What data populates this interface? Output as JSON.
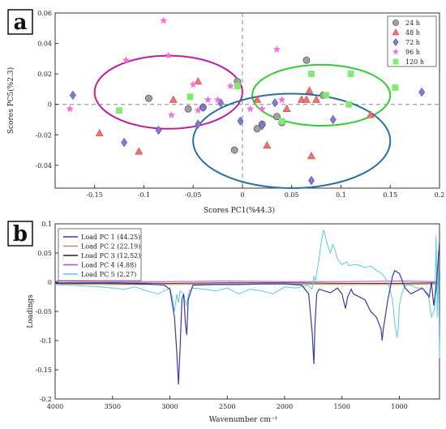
{
  "figure": {
    "panels": [
      "a",
      "b"
    ]
  },
  "chart_data": [
    {
      "type": "scatter",
      "panel": "a",
      "xlabel": "Scores PC1(%44.3)",
      "ylabel": "Scores PC5(%2.3)",
      "xlim": [
        -0.19,
        0.2
      ],
      "ylim": [
        -0.055,
        0.06
      ],
      "xticks": [
        -0.15,
        -0.1,
        -0.05,
        0,
        0.05,
        0.1,
        0.15,
        0.2
      ],
      "xtick_labels": [
        "-0.15",
        "-0.1",
        "-0.05",
        "0",
        "0.05",
        "0.1",
        "0.15",
        "0.2"
      ],
      "yticks": [
        -0.04,
        -0.02,
        0,
        0.02,
        0.04,
        0.06
      ],
      "ytick_labels": [
        "-0.04",
        "-0.02",
        "0",
        "0.02",
        "0.04",
        "0.06"
      ],
      "reference_lines": {
        "x": 0,
        "y": 0
      },
      "legend_position": "top-right",
      "series": [
        {
          "name": "24 h",
          "marker": "circle",
          "color": "#a0a0a0",
          "x": [
            -0.095,
            -0.055,
            -0.04,
            -0.005,
            -0.008,
            0.015,
            0.02,
            0.035,
            0.04,
            0.065,
            0.082
          ],
          "y": [
            0.004,
            -0.003,
            -0.002,
            0.015,
            -0.03,
            -0.016,
            -0.013,
            -0.008,
            -0.012,
            0.029,
            0.006
          ]
        },
        {
          "name": "48 h",
          "marker": "triangle",
          "color": "#f27070",
          "x": [
            -0.145,
            -0.105,
            -0.07,
            -0.045,
            0.015,
            0.025,
            0.045,
            0.06,
            0.065,
            0.068,
            0.07,
            0.075,
            0.13
          ],
          "y": [
            -0.019,
            -0.031,
            0.003,
            0.015,
            0.003,
            -0.027,
            -0.003,
            0.003,
            0.003,
            0.009,
            -0.034,
            0.003,
            -0.007
          ]
        },
        {
          "name": "72 h",
          "marker": "diamond",
          "color": "#7b7bd8",
          "x": [
            -0.172,
            -0.12,
            -0.085,
            -0.045,
            -0.04,
            -0.022,
            -0.002,
            0.02,
            0.033,
            0.07,
            0.092,
            0.182
          ],
          "y": [
            0.006,
            -0.025,
            -0.017,
            -0.013,
            -0.002,
            0.001,
            -0.011,
            -0.014,
            0.001,
            -0.05,
            -0.01,
            0.008
          ]
        },
        {
          "name": "96 h",
          "marker": "star",
          "color": "#ef6fe0",
          "x": [
            -0.175,
            -0.118,
            -0.08,
            -0.075,
            -0.072,
            -0.05,
            -0.045,
            -0.035,
            -0.025,
            -0.012,
            0.008,
            0.02,
            0.035,
            0.04
          ],
          "y": [
            -0.003,
            0.029,
            0.055,
            0.032,
            -0.007,
            0.013,
            -0.004,
            0.003,
            0.003,
            0.012,
            -0.003,
            -0.003,
            0.036,
            0.003
          ]
        },
        {
          "name": "120 h",
          "marker": "square",
          "color": "#7ded6f",
          "x": [
            -0.125,
            -0.053,
            -0.005,
            0.04,
            0.07,
            0.085,
            0.11,
            0.108,
            0.155
          ],
          "y": [
            -0.004,
            0.005,
            0.012,
            -0.011,
            0.02,
            0.006,
            0.02,
            0.0,
            0.011
          ]
        }
      ],
      "confidence_ellipses": [
        {
          "color": "#c0209b",
          "cx": -0.075,
          "cy": 0.008,
          "rx": 0.075,
          "ry": 0.024
        },
        {
          "color": "#30cc30",
          "cx": 0.08,
          "cy": 0.006,
          "rx": 0.07,
          "ry": 0.02
        },
        {
          "color": "#2a6fa0",
          "cx": 0.05,
          "cy": -0.024,
          "rx": 0.1,
          "ry": 0.031
        }
      ]
    },
    {
      "type": "line",
      "panel": "b",
      "xlabel": "Wavenumber cm⁻¹",
      "ylabel": "Loadings",
      "xlim": [
        4000,
        650
      ],
      "ylim": [
        -0.2,
        0.1
      ],
      "xticks": [
        4000,
        3500,
        3000,
        2500,
        2000,
        1500,
        1000
      ],
      "xtick_labels": [
        "4000",
        "3500",
        "3000",
        "2500",
        "2000",
        "1500",
        "1000"
      ],
      "yticks": [
        -0.2,
        -0.15,
        -0.1,
        -0.05,
        0,
        0.05,
        0.1
      ],
      "ytick_labels": [
        "-0.2",
        "-0.15",
        "-0.1",
        "-0.05",
        "0",
        "0.05",
        "0.1"
      ],
      "legend_position": "top-left",
      "series": [
        {
          "name": "Load PC 1 (44.25)",
          "color": "#3a3aa8",
          "x": [
            4000,
            3600,
            3200,
            3050,
            3000,
            2960,
            2940,
            2925,
            2910,
            2895,
            2880,
            2865,
            2853,
            2840,
            2800,
            2600,
            2400,
            2200,
            2000,
            1850,
            1790,
            1760,
            1745,
            1735,
            1720,
            1700,
            1650,
            1600,
            1540,
            1500,
            1470,
            1450,
            1420,
            1400,
            1300,
            1250,
            1200,
            1160,
            1150,
            1140,
            1100,
            1080,
            1060,
            1040,
            1000,
            950,
            900,
            800,
            740,
            720,
            700,
            680,
            650
          ],
          "y": [
            -0.002,
            -0.002,
            -0.003,
            -0.005,
            -0.012,
            -0.06,
            -0.12,
            -0.175,
            -0.11,
            -0.03,
            -0.02,
            -0.07,
            -0.09,
            -0.03,
            -0.005,
            -0.004,
            -0.004,
            -0.003,
            -0.003,
            -0.005,
            -0.02,
            -0.085,
            -0.14,
            -0.07,
            -0.02,
            -0.012,
            -0.015,
            -0.018,
            -0.01,
            -0.02,
            -0.045,
            -0.025,
            -0.012,
            -0.02,
            -0.03,
            -0.05,
            -0.06,
            -0.08,
            -0.1,
            -0.08,
            -0.03,
            -0.01,
            0.01,
            0.02,
            0.015,
            -0.01,
            -0.02,
            -0.01,
            -0.025,
            0.0,
            -0.04,
            -0.01,
            0.07
          ]
        },
        {
          "name": "Load PC 2 (22.19)",
          "color": "#c98a4a",
          "x": [
            4000,
            3500,
            3000,
            2500,
            2000,
            1500,
            1000,
            650
          ],
          "y": [
            -0.003,
            -0.004,
            -0.004,
            -0.003,
            -0.003,
            -0.004,
            -0.004,
            -0.003
          ]
        },
        {
          "name": "Load PC 3 (12.52)",
          "color": "#222222",
          "x": [
            4000,
            3500,
            3000,
            2500,
            2000,
            1500,
            1000,
            650
          ],
          "y": [
            -0.001,
            -0.001,
            -0.002,
            -0.001,
            -0.001,
            -0.002,
            -0.002,
            -0.001
          ]
        },
        {
          "name": "Load PC 4 (4.88)",
          "color": "#d040c0",
          "x": [
            4000,
            3500,
            3000,
            2500,
            2000,
            1500,
            1000,
            650
          ],
          "y": [
            0.002,
            0.001,
            0.001,
            0.002,
            0.001,
            0.001,
            0.002,
            0.001
          ]
        },
        {
          "name": "Load PC 5 (2.27)",
          "color": "#5cc8e8",
          "x": [
            4000,
            3800,
            3600,
            3400,
            3300,
            3200,
            3100,
            3000,
            2980,
            2960,
            2940,
            2925,
            2910,
            2880,
            2860,
            2850,
            2830,
            2800,
            2700,
            2600,
            2500,
            2400,
            2300,
            2200,
            2100,
            2000,
            1900,
            1800,
            1760,
            1745,
            1730,
            1700,
            1680,
            1660,
            1640,
            1620,
            1600,
            1580,
            1560,
            1540,
            1500,
            1460,
            1440,
            1400,
            1360,
            1300,
            1250,
            1200,
            1150,
            1100,
            1060,
            1040,
            1020,
            1010,
            1000,
            980,
            950,
            900,
            850,
            800,
            750,
            720,
            700,
            690,
            680,
            670,
            660,
            650
          ],
          "y": [
            -0.004,
            -0.006,
            -0.008,
            -0.012,
            -0.008,
            -0.015,
            -0.02,
            -0.01,
            -0.025,
            -0.05,
            -0.02,
            -0.035,
            -0.015,
            -0.02,
            -0.04,
            -0.035,
            -0.015,
            -0.01,
            -0.012,
            -0.015,
            -0.01,
            -0.02,
            -0.012,
            -0.015,
            -0.02,
            -0.008,
            -0.01,
            -0.005,
            -0.012,
            0.01,
            0.003,
            0.04,
            0.07,
            0.09,
            0.075,
            0.06,
            0.05,
            0.065,
            0.055,
            0.04,
            0.03,
            0.035,
            0.028,
            0.03,
            0.03,
            0.025,
            0.028,
            0.02,
            0.015,
            0.0,
            -0.03,
            -0.07,
            -0.095,
            -0.08,
            -0.04,
            -0.02,
            -0.005,
            -0.005,
            -0.01,
            -0.01,
            -0.02,
            -0.06,
            -0.05,
            -0.04,
            0.08,
            -0.06,
            0.05,
            -0.13
          ]
        }
      ]
    }
  ]
}
